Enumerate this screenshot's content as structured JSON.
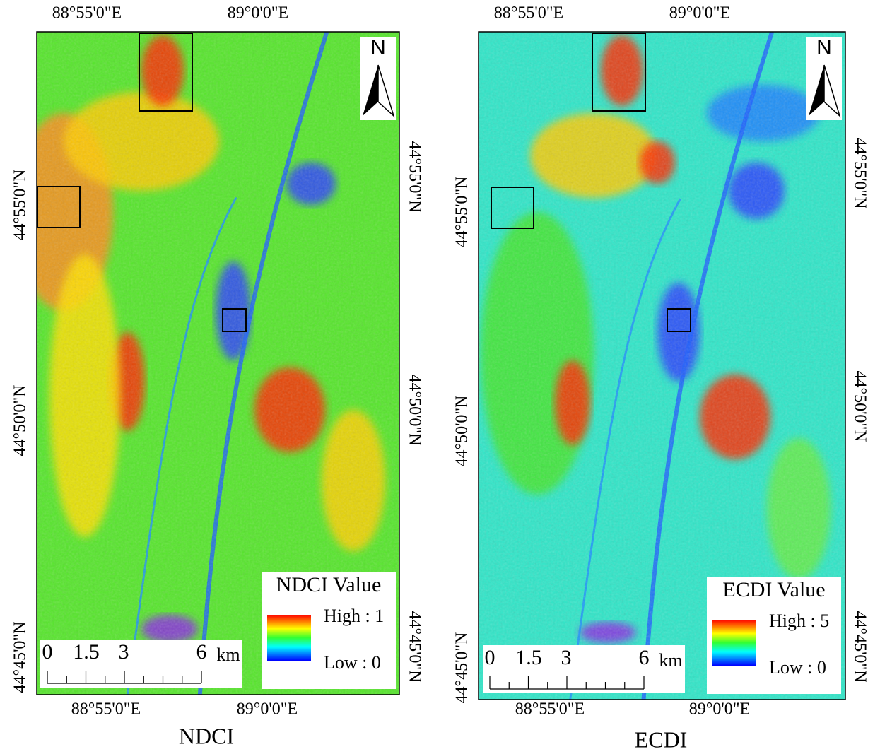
{
  "panels": [
    {
      "caption": "NDCI",
      "top_labels": [
        "88°55'0\"E",
        "89°0'0\"E"
      ],
      "bottom_labels": [
        "88°55'0\"E",
        "89°0'0\"E"
      ],
      "left_labels": [
        "44°55'0\"N",
        "44°50'0\"N",
        "44°45'0\"N"
      ],
      "right_labels": [
        "44°55'0\"N",
        "44°50'0\"N",
        "44°45'0\"N"
      ],
      "north": "N",
      "legend": {
        "title": "NDCI Value",
        "high": "High : 1",
        "low": "Low : 0"
      },
      "scale": {
        "labels": [
          "0",
          "1.5",
          "3",
          "6"
        ],
        "unit": "km"
      }
    },
    {
      "caption": "ECDI",
      "top_labels": [
        "88°55'0\"E",
        "89°0'0\"E"
      ],
      "bottom_labels": [
        "88°55'0\"E",
        "89°0'0\"E"
      ],
      "left_labels": [
        "44°55'0\"N",
        "44°50'0\"N",
        "44°45'0\"N"
      ],
      "right_labels": [
        "44°55'0\"N",
        "44°50'0\"N",
        "44°45'0\"N"
      ],
      "north": "N",
      "legend": {
        "title": "ECDI Value",
        "high": "High : 5",
        "low": "Low : 0"
      },
      "scale": {
        "labels": [
          "0",
          "1.5",
          "3",
          "6"
        ],
        "unit": "km"
      }
    }
  ]
}
